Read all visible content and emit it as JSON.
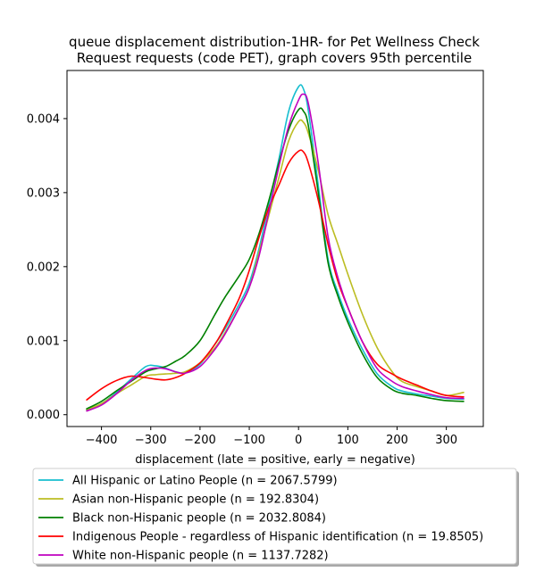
{
  "chart_data": {
    "type": "line",
    "title_lines": [
      "queue displacement distribution-1HR-  for Pet Wellness Check",
      "Request  requests (code PET), graph covers 95th percentile"
    ],
    "xlabel": "displacement (late = positive, early = negative)",
    "ylabel": "",
    "xlim": [
      -470,
      375
    ],
    "ylim": [
      -0.00016,
      0.00465
    ],
    "xticks": [
      -400,
      -300,
      -200,
      -100,
      0,
      100,
      200,
      300
    ],
    "xtick_labels": [
      "−400",
      "−300",
      "−200",
      "−100",
      "0",
      "100",
      "200",
      "300"
    ],
    "yticks": [
      0.0,
      0.001,
      0.002,
      0.003,
      0.004
    ],
    "ytick_labels": [
      "0.000",
      "0.001",
      "0.002",
      "0.003",
      "0.004"
    ],
    "grid": false,
    "legend_position": "below",
    "series": [
      {
        "name": "All Hispanic or Latino People (n = 2067.5799)",
        "color": "#17becf",
        "x": [
          -430,
          -400,
          -370,
          -340,
          -310,
          -290,
          -270,
          -250,
          -230,
          -200,
          -170,
          -150,
          -120,
          -100,
          -80,
          -60,
          -40,
          -20,
          0,
          10,
          20,
          40,
          60,
          80,
          100,
          130,
          160,
          190,
          210,
          240,
          270,
          300,
          335
        ],
        "y": [
          6e-05,
          0.00015,
          0.0003,
          0.00048,
          0.00065,
          0.00066,
          0.00063,
          0.00058,
          0.00057,
          0.00068,
          0.00095,
          0.00115,
          0.0015,
          0.00178,
          0.00225,
          0.00285,
          0.00345,
          0.0041,
          0.00443,
          0.0044,
          0.0041,
          0.0031,
          0.0021,
          0.00165,
          0.0013,
          0.00088,
          0.00055,
          0.00038,
          0.00032,
          0.00028,
          0.00025,
          0.00022,
          0.00021
        ]
      },
      {
        "name": "Asian non-Hispanic people (n = 192.8304)",
        "color": "#bcbd22",
        "x": [
          -430,
          -400,
          -370,
          -340,
          -310,
          -290,
          -270,
          -250,
          -230,
          -200,
          -170,
          -150,
          -120,
          -100,
          -80,
          -60,
          -40,
          -20,
          0,
          10,
          20,
          40,
          60,
          80,
          100,
          130,
          160,
          190,
          210,
          240,
          270,
          300,
          335
        ],
        "y": [
          7e-05,
          0.00015,
          0.00028,
          0.0004,
          0.00052,
          0.00054,
          0.00055,
          0.00056,
          0.00058,
          0.0007,
          0.0009,
          0.0011,
          0.00145,
          0.00172,
          0.0022,
          0.0027,
          0.0032,
          0.0037,
          0.00396,
          0.00395,
          0.0038,
          0.0033,
          0.0027,
          0.0023,
          0.0019,
          0.00135,
          0.0009,
          0.00058,
          0.00045,
          0.00038,
          0.00032,
          0.00026,
          0.0003
        ]
      },
      {
        "name": "Black non-Hispanic people (n = 2032.8084)",
        "color": "#008000",
        "x": [
          -430,
          -400,
          -370,
          -340,
          -310,
          -290,
          -270,
          -250,
          -230,
          -200,
          -170,
          -150,
          -120,
          -100,
          -80,
          -60,
          -40,
          -20,
          0,
          10,
          20,
          40,
          60,
          80,
          100,
          130,
          160,
          190,
          210,
          240,
          270,
          300,
          335
        ],
        "y": [
          8e-05,
          0.00018,
          0.00032,
          0.00045,
          0.00058,
          0.00062,
          0.00065,
          0.00072,
          0.0008,
          0.001,
          0.00135,
          0.00158,
          0.00188,
          0.0021,
          0.00245,
          0.0029,
          0.0034,
          0.00385,
          0.00412,
          0.0041,
          0.0039,
          0.003,
          0.00205,
          0.0016,
          0.00125,
          0.00082,
          0.0005,
          0.00034,
          0.00029,
          0.00026,
          0.00022,
          0.00019,
          0.00018
        ]
      },
      {
        "name": "Indigenous People - regardless of Hispanic identification (n = 19.8505)",
        "color": "#ff0000",
        "x": [
          -430,
          -400,
          -370,
          -340,
          -310,
          -290,
          -270,
          -250,
          -230,
          -200,
          -170,
          -150,
          -120,
          -100,
          -80,
          -60,
          -40,
          -20,
          0,
          10,
          20,
          40,
          60,
          80,
          100,
          130,
          160,
          190,
          210,
          240,
          270,
          300,
          335
        ],
        "y": [
          0.0002,
          0.00035,
          0.00046,
          0.00052,
          0.0005,
          0.00048,
          0.00047,
          0.0005,
          0.00056,
          0.0007,
          0.00095,
          0.00118,
          0.00158,
          0.00195,
          0.0024,
          0.0028,
          0.0031,
          0.0034,
          0.00356,
          0.00355,
          0.0034,
          0.0029,
          0.0023,
          0.0018,
          0.00145,
          0.00098,
          0.00068,
          0.00055,
          0.00048,
          0.0004,
          0.00032,
          0.00026,
          0.00024
        ]
      },
      {
        "name": "White non-Hispanic people (n = 1137.7282)",
        "color": "#bf00bf",
        "x": [
          -430,
          -400,
          -370,
          -340,
          -310,
          -290,
          -270,
          -250,
          -230,
          -200,
          -170,
          -150,
          -120,
          -100,
          -80,
          -60,
          -40,
          -20,
          0,
          10,
          20,
          40,
          60,
          80,
          100,
          130,
          160,
          190,
          210,
          240,
          270,
          300,
          335
        ],
        "y": [
          5e-05,
          0.00013,
          0.00028,
          0.00046,
          0.0006,
          0.00063,
          0.00062,
          0.00058,
          0.00056,
          0.00065,
          0.00088,
          0.00108,
          0.00145,
          0.00172,
          0.00215,
          0.00275,
          0.00335,
          0.0039,
          0.00425,
          0.00433,
          0.0042,
          0.0034,
          0.0024,
          0.00185,
          0.00145,
          0.00098,
          0.00062,
          0.00045,
          0.00038,
          0.00032,
          0.00027,
          0.00023,
          0.00022
        ]
      }
    ]
  }
}
